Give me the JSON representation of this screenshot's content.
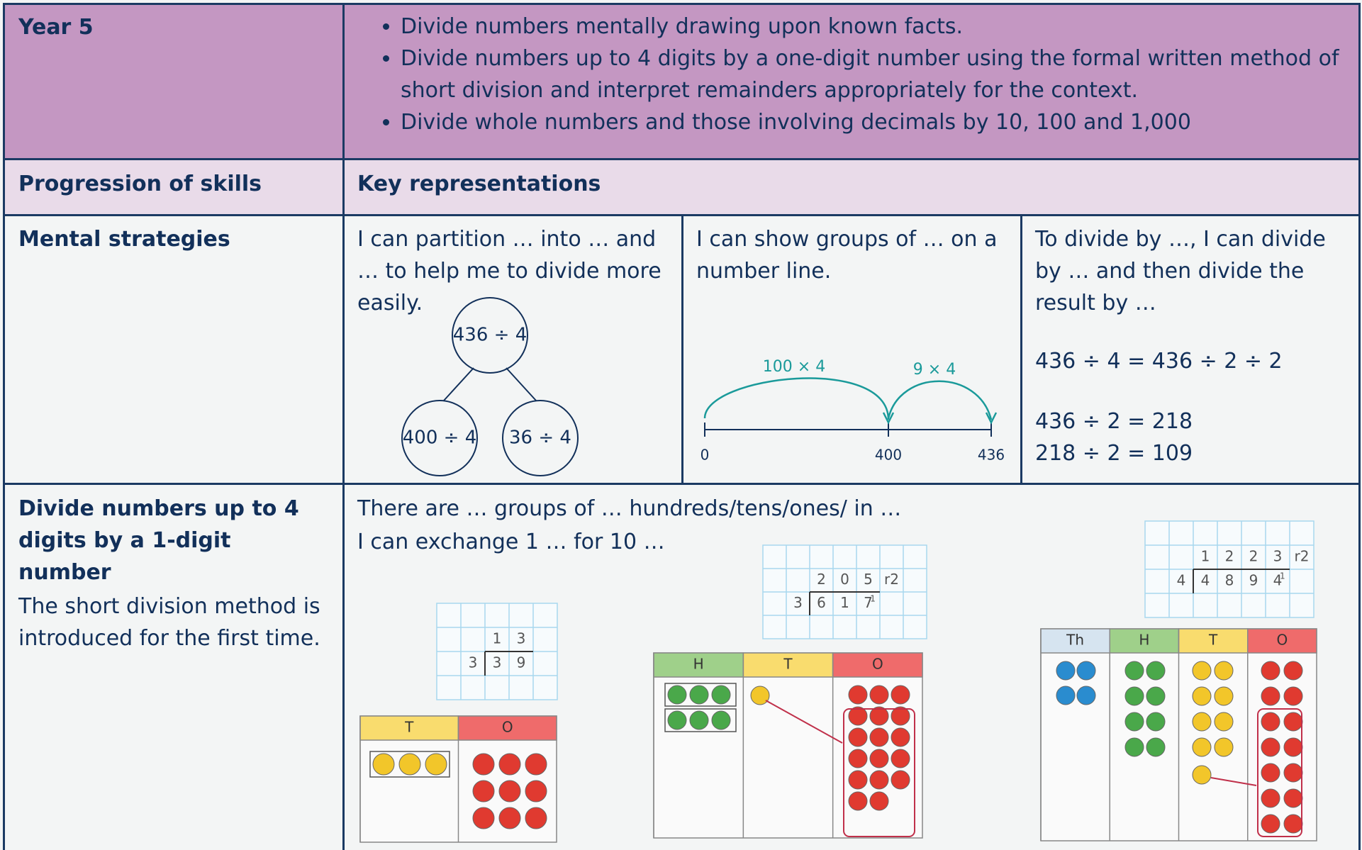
{
  "header": {
    "year": "Year 5",
    "bullets": [
      "Divide numbers mentally drawing upon known facts.",
      "Divide numbers up to 4 digits by a one-digit number using the formal written method of short division and interpret remainders appropriately for the context.",
      "Divide whole numbers and those involving decimals by 10, 100 and 1,000"
    ]
  },
  "subheader": {
    "left": "Progression of skills",
    "right": "Key representations"
  },
  "mental": {
    "skill": "Mental strategies",
    "partition": {
      "text": "I can partition … into … and … to help me to divide more easily.",
      "top": "436 ÷ 4",
      "left": "400 ÷ 4",
      "right": "36 ÷ 4"
    },
    "number_line": {
      "text": "I can show groups of …  on a number line.",
      "jumps": [
        "100 × 4",
        "9 × 4"
      ],
      "marks": [
        "0",
        "400",
        "436"
      ]
    },
    "halving": {
      "text": "To divide by …, I can divide by … and then divide the result by …",
      "equations": [
        "436 ÷ 4 = 436 ÷ 2 ÷ 2",
        "436 ÷ 2 = 218",
        "218 ÷ 2 = 109"
      ]
    }
  },
  "short_division": {
    "skill": "Divide numbers up to 4 digits by a 1-digit number",
    "note": "The short division method is introduced for the first time.",
    "intro": [
      "There are … groups of … hundreds/tens/ones/ in …",
      "I can exchange 1 … for 10 …"
    ],
    "examples": [
      {
        "quotient": [
          "1",
          "3"
        ],
        "divisor": "3",
        "dividend": [
          "3",
          "9"
        ],
        "columns": [
          "T",
          "O"
        ]
      },
      {
        "quotient": [
          "2",
          "0",
          "5",
          "r2"
        ],
        "divisor": "3",
        "dividend": [
          "6",
          "1",
          "7"
        ],
        "carry": "1",
        "columns": [
          "H",
          "T",
          "O"
        ]
      },
      {
        "quotient": [
          "1",
          "2",
          "2",
          "3",
          "r2"
        ],
        "divisor": "4",
        "dividend": [
          "4",
          "8",
          "9",
          "4"
        ],
        "carry": "1",
        "columns": [
          "Th",
          "H",
          "T",
          "O"
        ]
      }
    ]
  }
}
